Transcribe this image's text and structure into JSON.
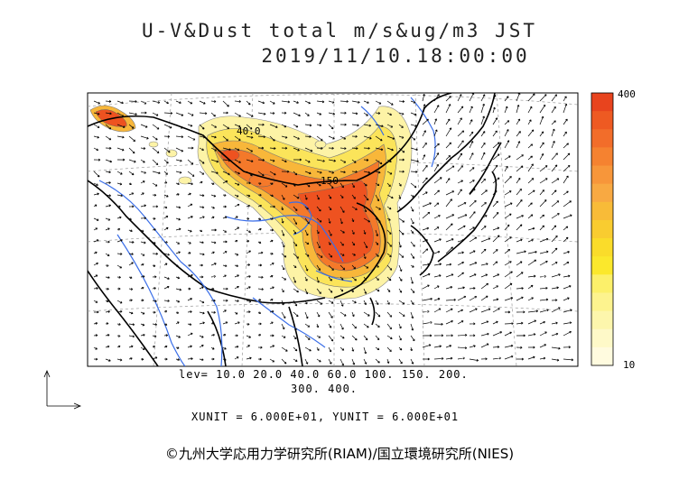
{
  "title_line1": "U-V&Dust total m/s&ug/m3 JST",
  "title_line2": "2019/11/10.18:00:00",
  "contour_labels": [
    "40.0",
    "150"
  ],
  "colorbar": {
    "max_label": "400",
    "min_label": "10",
    "colors": [
      "#e8441e",
      "#ee5a22",
      "#f26d2a",
      "#f58230",
      "#f7963a",
      "#f8a942",
      "#f8bb38",
      "#f9cc30",
      "#fadc2a",
      "#fbe82c",
      "#fcf06a",
      "#fdf38e",
      "#fdf6ac",
      "#fef9c8",
      "#fffbdf"
    ]
  },
  "levels_line1": "lev= 10.0 20.0 40.0 60.0 100. 150. 200.",
  "levels_line2": "300. 400.",
  "units_line": "XUNIT = 6.000E+01, YUNIT = 6.000E+01",
  "copyright": "©九州大学応用力学研究所(RIAM)/国立環境研究所(NIES)"
}
